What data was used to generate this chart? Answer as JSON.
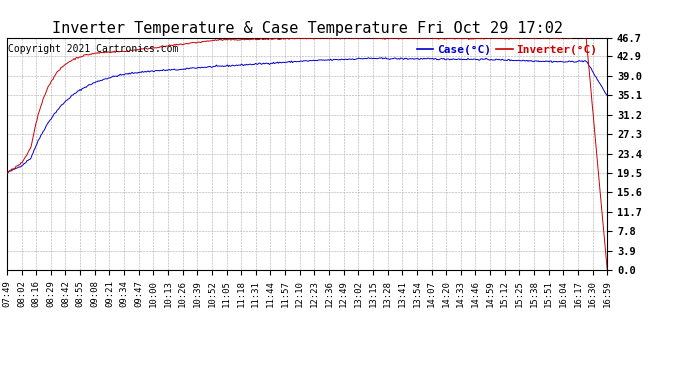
{
  "title": "Inverter Temperature & Case Temperature Fri Oct 29 17:02",
  "copyright": "Copyright 2021 Cartronics.com",
  "legend_case": "Case(°C)",
  "legend_inverter": "Inverter(°C)",
  "yticks": [
    0.0,
    3.9,
    7.8,
    11.7,
    15.6,
    19.5,
    23.4,
    27.3,
    31.2,
    35.1,
    39.0,
    42.9,
    46.7
  ],
  "ymin": 0.0,
  "ymax": 46.7,
  "case_color": "#0000CC",
  "inverter_color": "#CC0000",
  "bg_color": "#FFFFFF",
  "grid_color": "#AAAAAA",
  "title_fontsize": 11,
  "legend_fontsize": 8,
  "copyright_fontsize": 7,
  "tick_fontsize": 6.5,
  "ytick_fontsize": 7.5,
  "xtick_labels": [
    "07:49",
    "08:02",
    "08:16",
    "08:29",
    "08:42",
    "08:55",
    "09:08",
    "09:21",
    "09:34",
    "09:47",
    "10:00",
    "10:13",
    "10:26",
    "10:39",
    "10:52",
    "11:05",
    "11:18",
    "11:31",
    "11:44",
    "11:57",
    "12:10",
    "12:23",
    "12:36",
    "12:49",
    "13:02",
    "13:15",
    "13:28",
    "13:41",
    "13:54",
    "14:07",
    "14:20",
    "14:33",
    "14:46",
    "14:59",
    "15:12",
    "15:25",
    "15:38",
    "15:51",
    "16:04",
    "16:17",
    "16:30",
    "16:59"
  ]
}
